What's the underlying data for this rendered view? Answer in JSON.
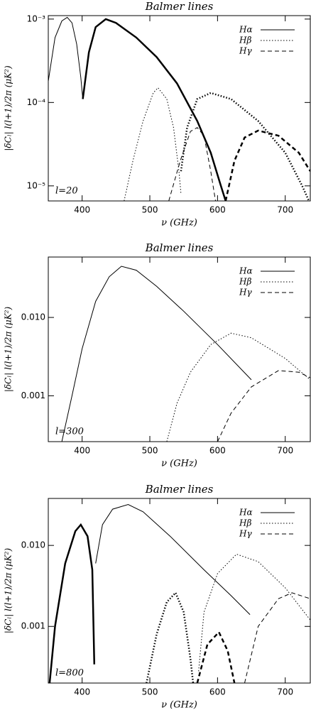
{
  "chart_data": [
    {
      "type": "line",
      "title": "Balmer lines",
      "xlabel": "ν (GHz)",
      "ylabel": "|δCₗ| l(l+1)/2π (μK²)",
      "annotation": "l=20",
      "xlim": [
        350,
        737
      ],
      "xticks": [
        400,
        500,
        600,
        700
      ],
      "yscale": "log",
      "ylim": [
        6.6e-06,
        0.0011
      ],
      "yticks": [
        {
          "value": 0.001,
          "label": "10⁻³"
        },
        {
          "value": 0.0001,
          "label": "10⁻⁴"
        },
        {
          "value": 1e-05,
          "label": "10⁻⁵"
        }
      ],
      "legend": "upper right",
      "series": [
        {
          "name": "Hα",
          "color": "#000000",
          "dash": "solid",
          "pieces": [
            {
              "width": 1,
              "x": [
                350,
                360,
                370,
                378,
                385,
                392,
                398,
                401
              ],
              "values": [
                0.00018,
                0.0006,
                0.00095,
                0.00105,
                0.0009,
                0.0005,
                0.0002,
                0.00011
              ]
            },
            {
              "width": 2.5,
              "x": [
                401,
                410,
                420,
                435,
                450,
                480,
                510,
                540,
                570,
                590,
                605,
                612
              ],
              "values": [
                0.00011,
                0.0004,
                0.0008,
                0.001,
                0.0009,
                0.0006,
                0.00035,
                0.00017,
                6e-05,
                2.5e-05,
                1e-05,
                6.6e-06
              ]
            }
          ]
        },
        {
          "name": "Hβ",
          "color": "#000000",
          "dash": "dotted",
          "pieces": [
            {
              "width": 1,
              "x": [
                462,
                475,
                490,
                505,
                512,
                525,
                535,
                543,
                546
              ],
              "values": [
                6.6e-06,
                2e-05,
                6e-05,
                0.00013,
                0.00015,
                0.00011,
                5e-05,
                1.5e-05,
                8e-06
              ]
            },
            {
              "width": 2.5,
              "x": [
                546,
                555,
                570,
                590,
                620,
                660,
                700,
                725,
                735
              ],
              "values": [
                1.5e-05,
                5e-05,
                0.00011,
                0.00013,
                0.00011,
                6e-05,
                2.5e-05,
                1e-05,
                6.6e-06
              ]
            }
          ]
        },
        {
          "name": "Hγ",
          "color": "#000000",
          "dash": "dashed",
          "pieces": [
            {
              "width": 1,
              "x": [
                528,
                545,
                560,
                570,
                580,
                590,
                597
              ],
              "values": [
                6.6e-06,
                2e-05,
                4.5e-05,
                5e-05,
                4e-05,
                1.5e-05,
                6.6e-06
              ]
            },
            {
              "width": 2.5,
              "x": [
                612,
                625,
                640,
                660,
                690,
                720,
                737
              ],
              "values": [
                6.6e-06,
                2e-05,
                3.8e-05,
                4.6e-05,
                4e-05,
                2.5e-05,
                1.5e-05
              ]
            }
          ]
        }
      ]
    },
    {
      "type": "line",
      "title": "Balmer lines",
      "xlabel": "ν (GHz)",
      "ylabel": "|δCₗ| l(l+1)/2π (μK²)",
      "annotation": "l=300",
      "xlim": [
        350,
        737
      ],
      "xticks": [
        400,
        500,
        600,
        700
      ],
      "yscale": "log",
      "ylim": [
        0.00026,
        0.059
      ],
      "yticks": [
        {
          "value": 0.01,
          "label": "0.010"
        },
        0.001
      ],
      "legend": "upper right",
      "series": [
        {
          "name": "Hα",
          "color": "#000000",
          "dash": "solid",
          "pieces": [
            {
              "width": 1,
              "x": [
                370,
                385,
                400,
                420,
                440,
                458,
                480,
                510,
                550,
                600,
                650
              ],
              "values": [
                0.00026,
                0.001,
                0.004,
                0.016,
                0.033,
                0.045,
                0.04,
                0.025,
                0.012,
                0.0045,
                0.0016
              ]
            }
          ]
        },
        {
          "name": "Hβ",
          "color": "#000000",
          "dash": "dotted",
          "pieces": [
            {
              "width": 1,
              "x": [
                525,
                540,
                560,
                590,
                620,
                650,
                700,
                737
              ],
              "values": [
                0.00026,
                0.0008,
                0.002,
                0.0045,
                0.0063,
                0.0055,
                0.003,
                0.0016
              ]
            }
          ]
        },
        {
          "name": "Hγ",
          "color": "#000000",
          "dash": "dashed",
          "pieces": [
            {
              "width": 1,
              "x": [
                600,
                620,
                650,
                690,
                720,
                737
              ],
              "values": [
                0.00026,
                0.0006,
                0.0013,
                0.0021,
                0.002,
                0.0017
              ]
            }
          ]
        }
      ]
    },
    {
      "type": "line",
      "title": "Balmer lines",
      "xlabel": "ν (GHz)",
      "ylabel": "|δCₗ| l(l+1)/2π (μK²)",
      "annotation": "l=800",
      "xlim": [
        350,
        737
      ],
      "xticks": [
        400,
        500,
        600,
        700
      ],
      "yscale": "log",
      "ylim": [
        0.0002,
        0.038
      ],
      "yticks": [
        {
          "value": 0.01,
          "label": "0.010"
        },
        0.001
      ],
      "legend": "upper right",
      "series": [
        {
          "name": "Hα",
          "color": "#000000",
          "dash": "solid",
          "pieces": [
            {
              "width": 2.5,
              "x": [
                352,
                360,
                375,
                390,
                398,
                408,
                415,
                418
              ],
              "values": [
                0.0002,
                0.001,
                0.006,
                0.015,
                0.018,
                0.013,
                0.005,
                0.00034
              ]
            },
            {
              "width": 1,
              "x": [
                420,
                430,
                445,
                468,
                490,
                530,
                580,
                620,
                648
              ],
              "values": [
                0.006,
                0.018,
                0.028,
                0.032,
                0.026,
                0.013,
                0.005,
                0.0024,
                0.0014
              ]
            }
          ]
        },
        {
          "name": "Hβ",
          "color": "#000000",
          "dash": "dotted",
          "pieces": [
            {
              "width": 2.5,
              "x": [
                495,
                510,
                525,
                538,
                550,
                560,
                564
              ],
              "values": [
                0.0002,
                0.0008,
                0.002,
                0.0026,
                0.0015,
                0.0004,
                0.0002
              ]
            },
            {
              "width": 1,
              "x": [
                572,
                580,
                600,
                628,
                660,
                700,
                737
              ],
              "values": [
                0.00028,
                0.0015,
                0.0045,
                0.0078,
                0.0063,
                0.003,
                0.0012
              ]
            }
          ]
        },
        {
          "name": "Hγ",
          "color": "#000000",
          "dash": "dashed",
          "pieces": [
            {
              "width": 2.5,
              "x": [
                570,
                585,
                602,
                615,
                625
              ],
              "values": [
                0.0002,
                0.0006,
                0.00085,
                0.0005,
                0.0002
              ]
            },
            {
              "width": 1,
              "x": [
                640,
                660,
                690,
                710,
                737
              ],
              "values": [
                0.0002,
                0.001,
                0.0022,
                0.0026,
                0.0022
              ]
            }
          ]
        }
      ]
    }
  ]
}
